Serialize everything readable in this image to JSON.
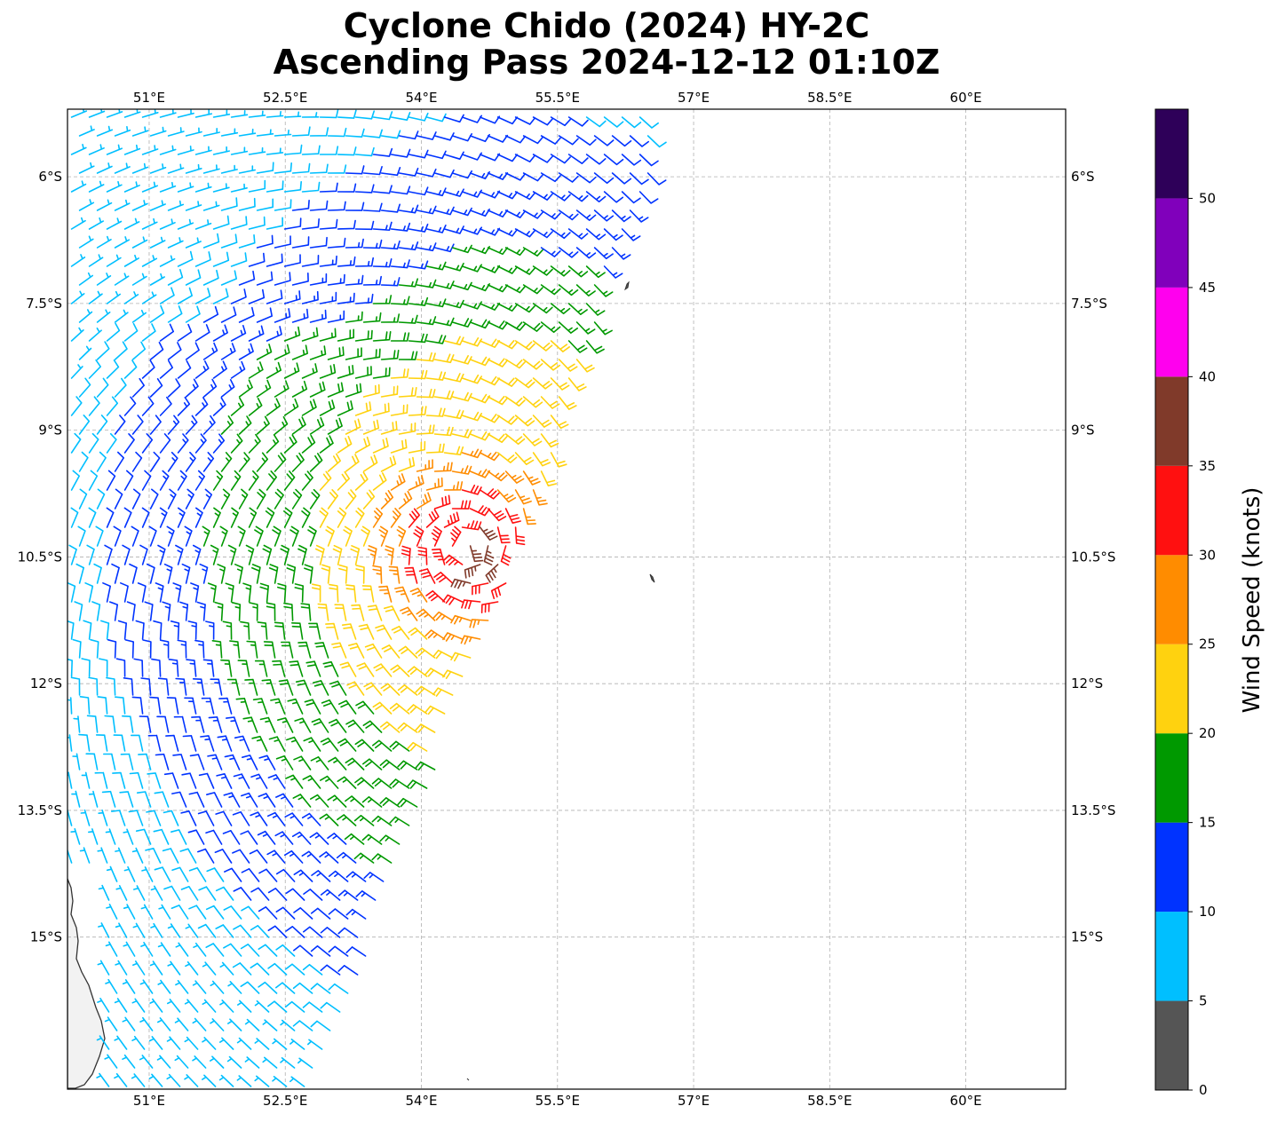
{
  "title": {
    "line1": "Cyclone Chido (2024) HY-2C",
    "line2": "Ascending Pass 2024-12-12 01:10Z"
  },
  "map": {
    "lon_range": [
      50.1,
      61.1
    ],
    "lat_range": [
      -16.8,
      -5.2
    ],
    "lon_ticks": [
      {
        "value": 51.0,
        "label": "51°E"
      },
      {
        "value": 52.5,
        "label": "52.5°E"
      },
      {
        "value": 54.0,
        "label": "54°E"
      },
      {
        "value": 55.5,
        "label": "55.5°E"
      },
      {
        "value": 57.0,
        "label": "57°E"
      },
      {
        "value": 58.5,
        "label": "58.5°E"
      },
      {
        "value": 60.0,
        "label": "60°E"
      }
    ],
    "lat_ticks": [
      {
        "value": -6.0,
        "label": "6°S"
      },
      {
        "value": -7.5,
        "label": "7.5°S"
      },
      {
        "value": -9.0,
        "label": "9°S"
      },
      {
        "value": -10.5,
        "label": "10.5°S"
      },
      {
        "value": -12.0,
        "label": "12°S"
      },
      {
        "value": -13.5,
        "label": "13.5°S"
      },
      {
        "value": -15.0,
        "label": "15°S"
      }
    ],
    "grid": true,
    "land_color": "#f2f2f2",
    "coast_color": "#333333",
    "storm_center": {
      "lon": 54.5,
      "lat": -10.4
    }
  },
  "colorbar": {
    "label": "Wind Speed (knots)",
    "tick_labels": [
      "0",
      "5",
      "10",
      "15",
      "20",
      "25",
      "30",
      "35",
      "40",
      "45",
      "50"
    ],
    "bins": [
      {
        "min": 0,
        "max": 5,
        "color": "#555555"
      },
      {
        "min": 5,
        "max": 10,
        "color": "#00bfff"
      },
      {
        "min": 10,
        "max": 15,
        "color": "#0033ff"
      },
      {
        "min": 15,
        "max": 20,
        "color": "#009900"
      },
      {
        "min": 20,
        "max": 25,
        "color": "#ffd20f"
      },
      {
        "min": 25,
        "max": 30,
        "color": "#ff8c00"
      },
      {
        "min": 30,
        "max": 35,
        "color": "#ff1010"
      },
      {
        "min": 35,
        "max": 40,
        "color": "#803a2a"
      },
      {
        "min": 40,
        "max": 45,
        "color": "#ff00ee"
      },
      {
        "min": 45,
        "max": 50,
        "color": "#8000bb"
      },
      {
        "min": 50,
        "max": 55,
        "color": "#2e0059"
      }
    ]
  }
}
